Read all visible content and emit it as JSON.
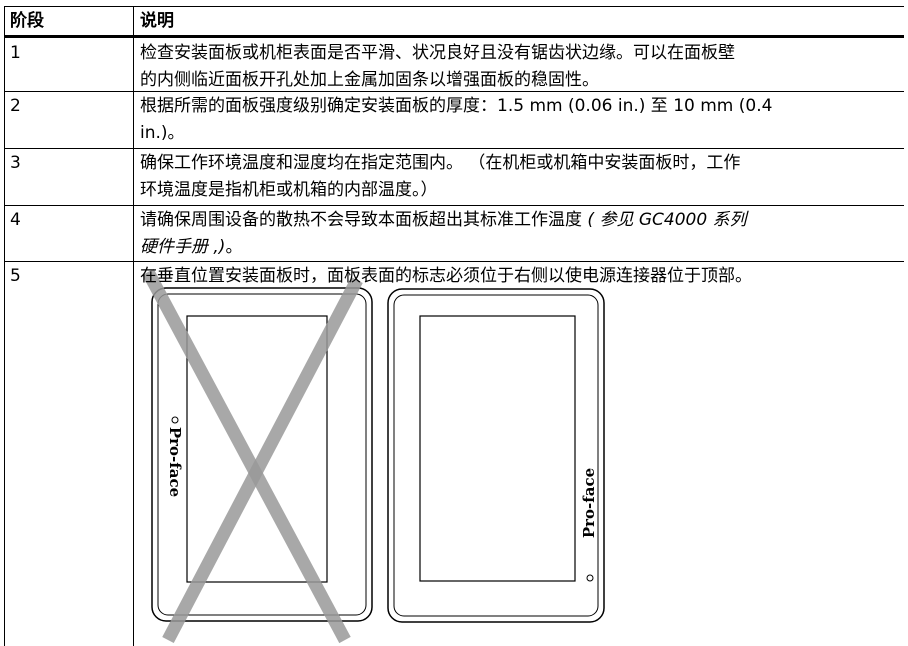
{
  "header": [
    "阶段",
    "说明"
  ],
  "rows": [
    {
      "step": "1",
      "lines": [
        [
          "检查安装面板或机柜表面是否平滑、状况良好且没有锯齿状边缘。可以在面板壁"
        ],
        [
          "的内侧临近面板开孔处加上金属加固条以增强面板的稳固性。"
        ]
      ]
    },
    {
      "step": "2",
      "lines": [
        [
          "根据所需的面板强度级别确定安装面板的厚度：1.5 mm (0.06 in.) 至 10 mm (0.4"
        ],
        [
          "in.)。"
        ]
      ]
    },
    {
      "step": "3",
      "lines": [
        [
          "确保工作环境温度和湿度均在指定范围内。 （在机柜或机箱中安装面板时，工作"
        ],
        [
          "环境温度是指机柜或机箱的内部温度。）"
        ]
      ]
    },
    {
      "step": "4",
      "lines": [
        [
          "请确保周围设备的散热不会导致本面板超出其标准工作温度 ",
          {
            "text": "( 参见 GC4000 系列",
            "style": "italic"
          }
        ],
        [
          {
            "text": "硬件手册 ,)",
            "style": "italic"
          },
          "。"
        ]
      ]
    },
    {
      "step": "5",
      "lines": [
        [
          "在垂直位置安装面板时，面板表面的标志必须位于右侧以使电源连接器位于顶部。"
        ]
      ]
    }
  ],
  "figure": {
    "wrong_logo": "Pro-face",
    "right_logo": "Pro-face"
  }
}
